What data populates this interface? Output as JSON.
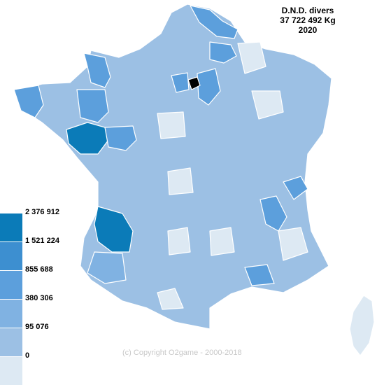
{
  "title": {
    "line1": "D.N.D. divers",
    "line2": "37 722 492 Kg",
    "line3": "2020"
  },
  "legend": {
    "classes": [
      {
        "label": "2 376 912",
        "color": "#0b7bb8"
      },
      {
        "label": "1 521 224",
        "color": "#3d8fd0"
      },
      {
        "label": "855 688",
        "color": "#5c9fdc"
      },
      {
        "label": "380 306",
        "color": "#80b2e2"
      },
      {
        "label": "95 076",
        "color": "#9cc0e4"
      },
      {
        "label": "0",
        "color": "#dde9f3"
      }
    ]
  },
  "copyright": "(c) Copyright O2game - 2000-2018",
  "colors": {
    "border": "#ffffff",
    "paris": "#000000",
    "text": "#000000",
    "copyright": "#c8c8c8"
  }
}
